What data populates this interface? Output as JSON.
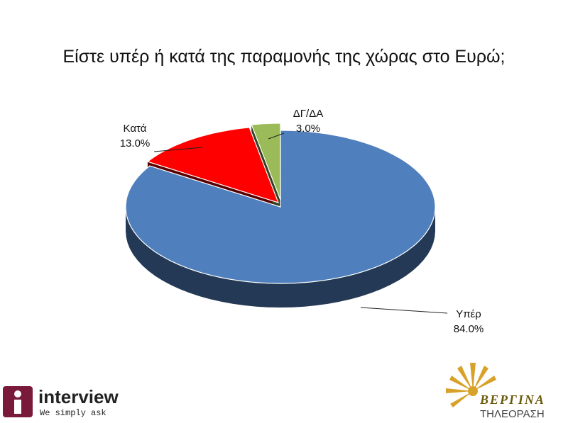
{
  "chart_data": {
    "type": "pie",
    "title": "Είστε υπέρ ή κατά της παραμονής της χώρας στο Ευρώ;",
    "slices": [
      {
        "label": "Υπέρ",
        "value": 84.0,
        "value_label": "84.0%",
        "color": "#4f7fbd"
      },
      {
        "label": "Κατά",
        "value": 13.0,
        "value_label": "13.0%",
        "color": "#ff0000"
      },
      {
        "label": "ΔΓ/ΔΑ",
        "value": 3.0,
        "value_label": "3.0%",
        "color": "#9bbb59"
      }
    ],
    "style": "3d-exploded"
  },
  "logos": {
    "left_name": "interview",
    "left_slogan": "We simply ask",
    "right_name": "ΒΕΡΓΙΝΑ",
    "right_sub": "ΤΗΛΕΟΡΑΣΗ"
  }
}
